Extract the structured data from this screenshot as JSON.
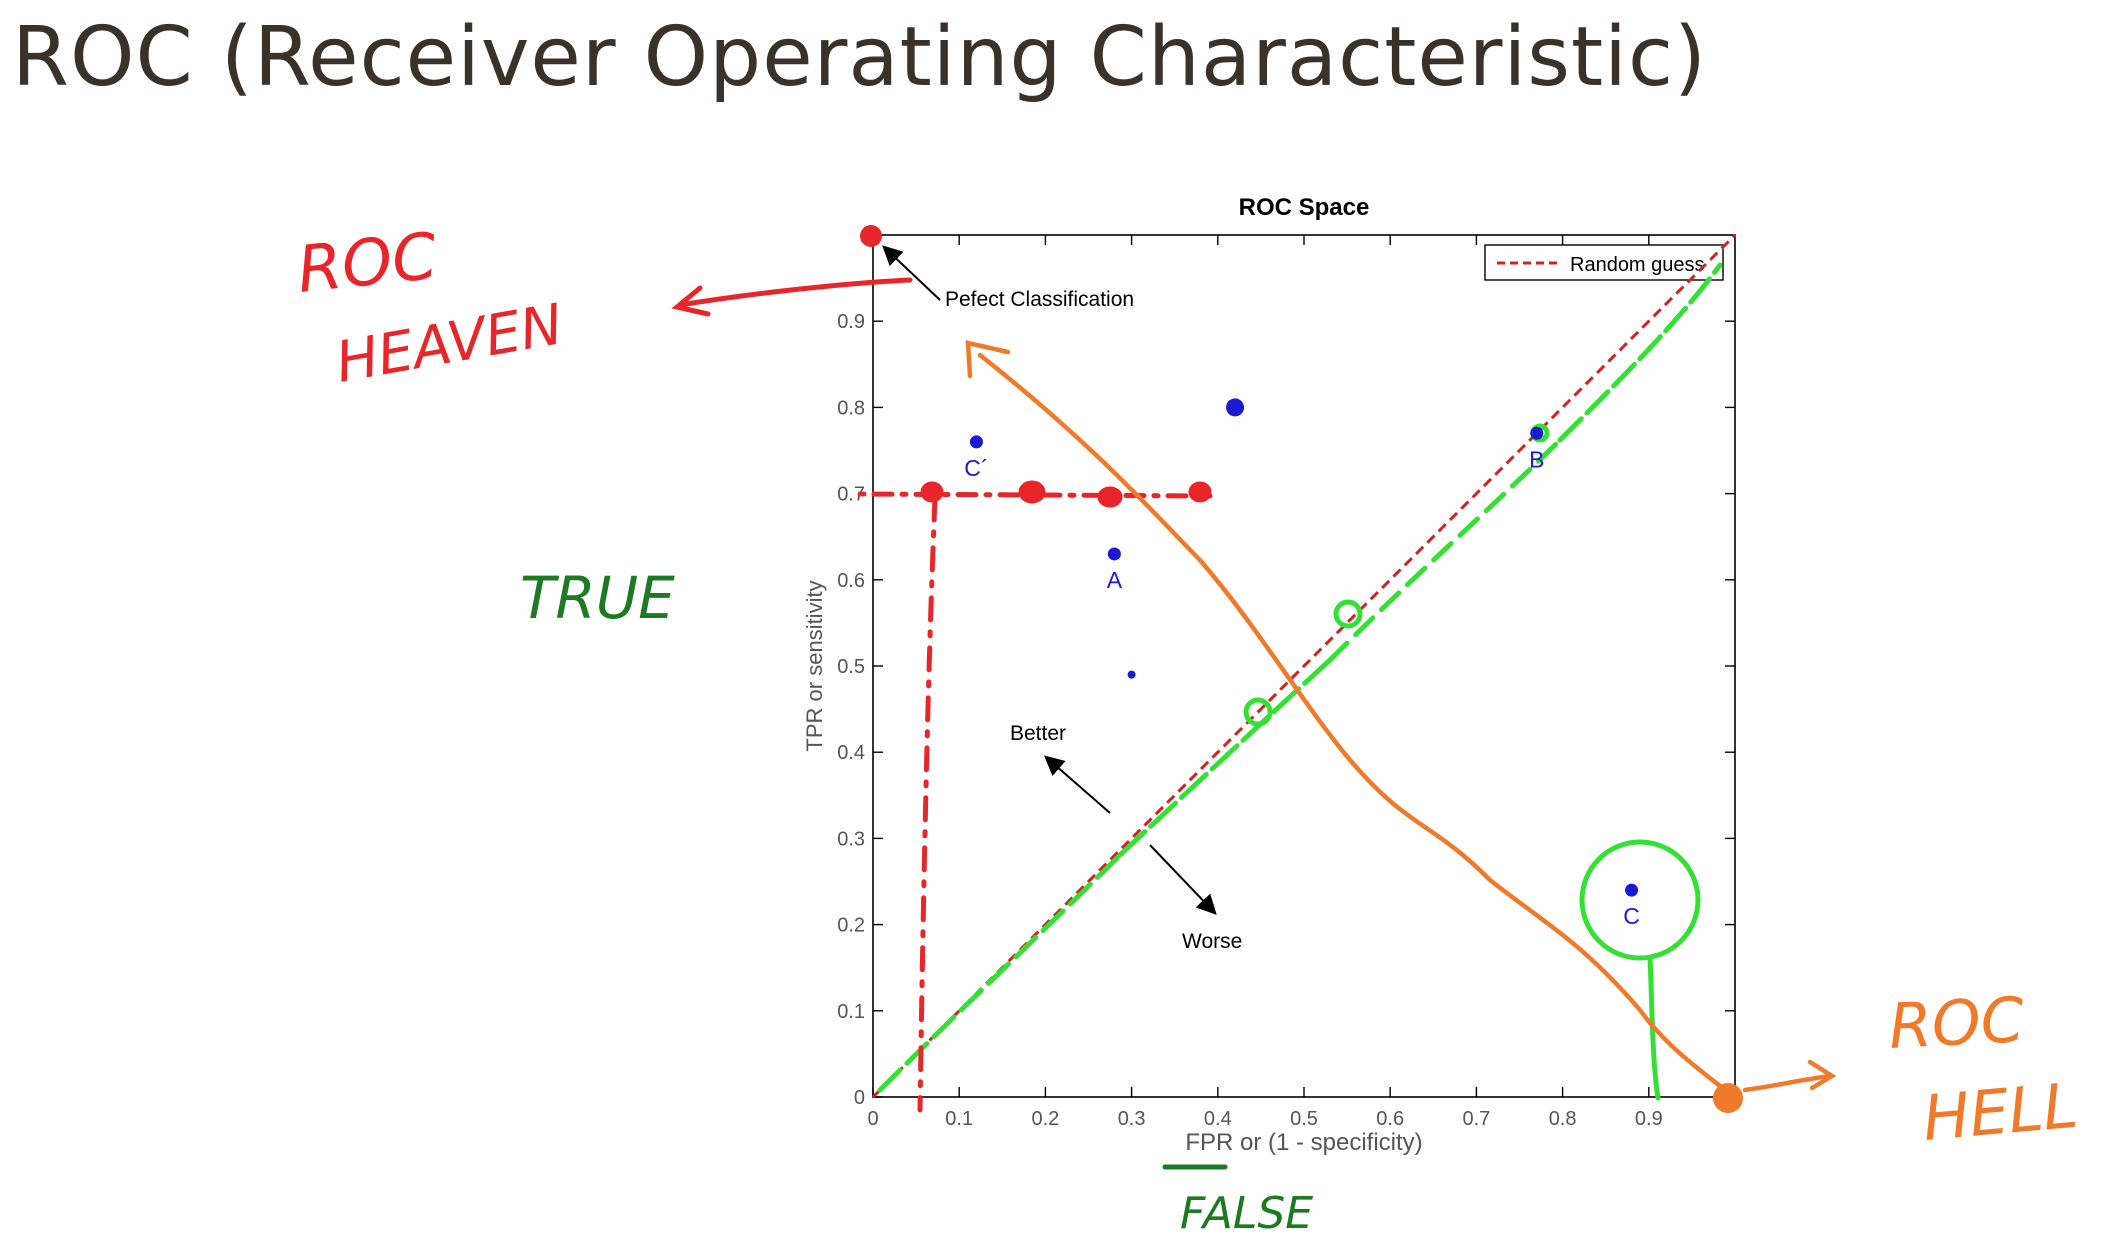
{
  "slide": {
    "title": "ROC (Receiver Operating Characteristic)"
  },
  "chart_data": {
    "type": "scatter",
    "title": "ROC Space",
    "xlabel": "FPR or (1 - specificity)",
    "ylabel": "TPR or sensitivity",
    "xlim": [
      0,
      1
    ],
    "ylim": [
      0,
      1
    ],
    "x_ticks": [
      "0",
      "0.1",
      "0.2",
      "0.3",
      "0.4",
      "0.5",
      "0.6",
      "0.7",
      "0.8",
      "0.9"
    ],
    "y_ticks": [
      "0",
      "0.1",
      "0.2",
      "0.3",
      "0.4",
      "0.5",
      "0.6",
      "0.7",
      "0.8",
      "0.9"
    ],
    "legend": {
      "position": "top-right",
      "entries": [
        "Random guess"
      ]
    },
    "random_guess_line": {
      "x": [
        0,
        1
      ],
      "y": [
        0,
        1
      ],
      "color": "#d42020",
      "style": "dashed"
    },
    "points": [
      {
        "label": "A",
        "x": 0.28,
        "y": 0.63
      },
      {
        "label": "B",
        "x": 0.77,
        "y": 0.77
      },
      {
        "label": "C",
        "x": 0.88,
        "y": 0.24
      },
      {
        "label": "C´",
        "x": 0.12,
        "y": 0.76
      }
    ],
    "extra_marks": [
      {
        "x": 0.42,
        "y": 0.8
      },
      {
        "x": 0.3,
        "y": 0.49
      }
    ],
    "annotations": {
      "perfect": {
        "text": "Pefect Classification",
        "x": 0,
        "y": 1
      },
      "better": "Better",
      "worse": "Worse"
    }
  },
  "handwriting": {
    "heaven_line1": "ROC",
    "heaven_line2": "HEAVEN",
    "true_label": "TRUE",
    "false_label": "FALSE",
    "hell_line1": "ROC",
    "hell_line2": "HELL"
  },
  "colors": {
    "title": "#3a3128",
    "heaven": "#e8262a",
    "hell": "#f07a2a",
    "green_ink": "#1d7a22",
    "diag_green": "#35e035",
    "points": "#1a1ad4",
    "random_guess": "#d42020"
  }
}
